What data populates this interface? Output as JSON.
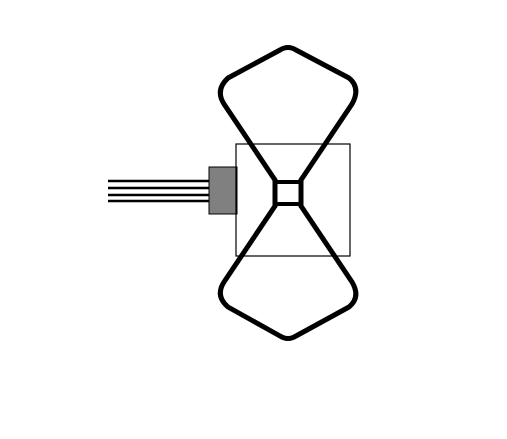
{
  "diagram": {
    "subject": "bowtie-antenna-with-coaxial-feed",
    "colors": {
      "background": "#ffffff",
      "element_stroke": "#000000",
      "connector_fill": "#808080",
      "box_stroke": "#000000"
    },
    "parts": [
      "coax-cable",
      "connector",
      "mount-box",
      "upper-bowtie-arm",
      "lower-bowtie-arm",
      "feed-gap"
    ]
  }
}
